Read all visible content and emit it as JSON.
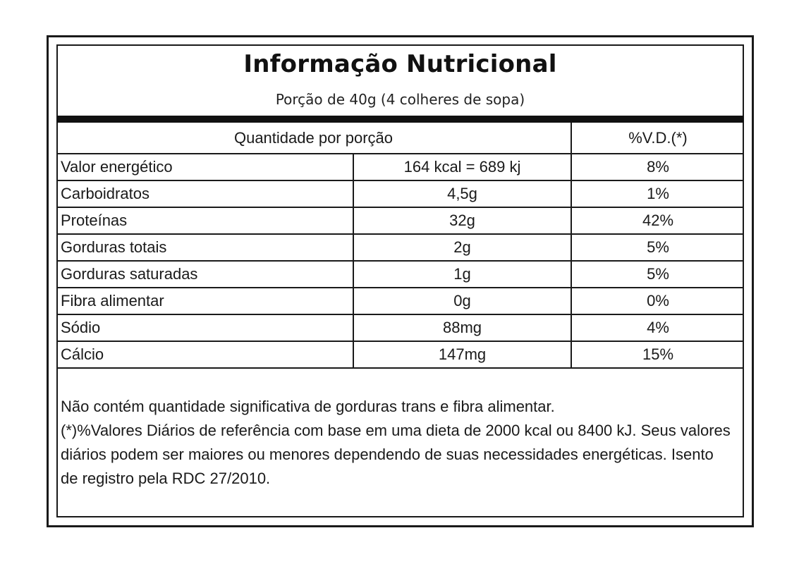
{
  "label": {
    "title": "Informação Nutricional",
    "serving": "Porção de 40g (4 colheres de sopa)",
    "header": {
      "quantity": "Quantidade por porção",
      "daily_value": "%V.D.(*)"
    },
    "rows": [
      {
        "name": "Valor energético",
        "amount": "164 kcal = 689 kj",
        "dv": "8%"
      },
      {
        "name": "Carboidratos",
        "amount": "4,5g",
        "dv": "1%"
      },
      {
        "name": "Proteínas",
        "amount": "32g",
        "dv": "42%"
      },
      {
        "name": "Gorduras totais",
        "amount": "2g",
        "dv": "5%"
      },
      {
        "name": "Gorduras saturadas",
        "amount": "1g",
        "dv": "5%"
      },
      {
        "name": "Fibra alimentar",
        "amount": "0g",
        "dv": "0%"
      },
      {
        "name": "Sódio",
        "amount": "88mg",
        "dv": "4%"
      },
      {
        "name": "Cálcio",
        "amount": "147mg",
        "dv": "15%"
      }
    ],
    "footnote": {
      "line1": "Não contém quantidade significativa de gorduras trans e fibra alimentar.",
      "line2": "(*)%Valores Diários de referência com base em uma dieta de 2000 kcal ou 8400 kJ. Seus valores diários podem ser maiores ou menores dependendo de suas necessidades energéticas.  Isento de registro pela RDC 27/2010."
    }
  }
}
